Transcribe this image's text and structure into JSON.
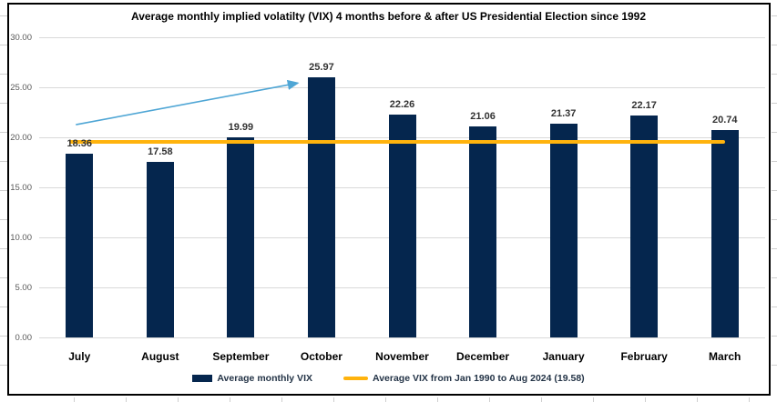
{
  "chart_data": {
    "type": "bar",
    "title": "Average monthly implied volatilty (VIX) 4 months before & after US Presidential Election since 1992",
    "categories": [
      "July",
      "August",
      "September",
      "October",
      "November",
      "December",
      "January",
      "February",
      "March"
    ],
    "series": [
      {
        "name": "Average monthly VIX",
        "values": [
          18.36,
          17.58,
          19.99,
          25.97,
          22.26,
          21.06,
          21.37,
          22.17,
          20.74
        ]
      }
    ],
    "reference_line": {
      "label": "Average VIX from Jan 1990 to Aug 2024 (19.58)",
      "value": 19.58
    },
    "annotation": {
      "type": "arrow",
      "from_category": "July",
      "to_category": "October",
      "points_at_value": 25.97
    },
    "ylim": [
      0,
      30
    ],
    "yticks": [
      0,
      5,
      10,
      15,
      20,
      25,
      30
    ],
    "ytick_labels": [
      "0.00",
      "5.00",
      "10.00",
      "15.00",
      "20.00",
      "25.00",
      "30.00"
    ],
    "grid": true,
    "legend_position": "bottom"
  },
  "colors": {
    "bar": "#05264E",
    "reference_line": "#FFB30D",
    "arrow": "#4FA6D5",
    "gridline": "#D9D9D9",
    "axis_text": "#595959",
    "data_label": "#333333",
    "category_label": "#000000",
    "title": "#000000",
    "chart_border": "#000000",
    "legend_text": "#243447"
  }
}
